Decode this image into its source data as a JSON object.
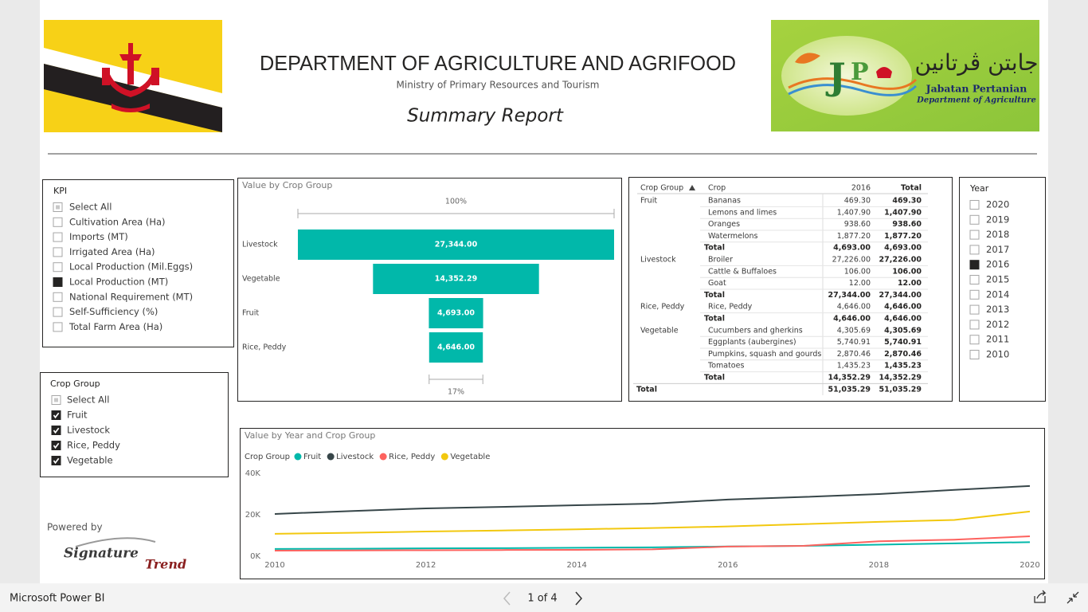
{
  "header": {
    "title": "DEPARTMENT OF AGRICULTURE AND AGRIFOOD",
    "subtitle": "Ministry of Primary Resources and Tourism",
    "report_title": "Summary Report"
  },
  "logo": {
    "arabic": "جابتن ڤرتانين",
    "malay": "Jabatan Pertanian",
    "english": "Department of Agriculture"
  },
  "kpi_slicer": {
    "title": "KPI",
    "options": [
      {
        "label": "Select All",
        "state": "partial"
      },
      {
        "label": "Cultivation Area (Ha)",
        "state": "off"
      },
      {
        "label": "Imports (MT)",
        "state": "off"
      },
      {
        "label": "Irrigated Area (Ha)",
        "state": "off"
      },
      {
        "label": "Local Production (Mil.Eggs)",
        "state": "off"
      },
      {
        "label": "Local Production (MT)",
        "state": "on"
      },
      {
        "label": "National Requirement (MT)",
        "state": "off"
      },
      {
        "label": "Self-Sufficiency (%)",
        "state": "off"
      },
      {
        "label": "Total Farm Area (Ha)",
        "state": "off"
      }
    ]
  },
  "crop_slicer": {
    "title": "Crop Group",
    "options": [
      {
        "label": "Select All",
        "state": "partial"
      },
      {
        "label": "Fruit",
        "state": "on"
      },
      {
        "label": "Livestock",
        "state": "on"
      },
      {
        "label": "Rice, Peddy",
        "state": "on"
      },
      {
        "label": "Vegetable",
        "state": "on"
      }
    ]
  },
  "year_slicer": {
    "title": "Year",
    "options": [
      {
        "label": "2020",
        "state": "off"
      },
      {
        "label": "2019",
        "state": "off"
      },
      {
        "label": "2018",
        "state": "off"
      },
      {
        "label": "2017",
        "state": "off"
      },
      {
        "label": "2016",
        "state": "on"
      },
      {
        "label": "2015",
        "state": "off"
      },
      {
        "label": "2014",
        "state": "off"
      },
      {
        "label": "2013",
        "state": "off"
      },
      {
        "label": "2012",
        "state": "off"
      },
      {
        "label": "2011",
        "state": "off"
      },
      {
        "label": "2010",
        "state": "off"
      }
    ]
  },
  "table": {
    "columns": [
      "Crop Group",
      "Crop",
      "2016",
      "Total"
    ],
    "groups": [
      {
        "name": "Fruit",
        "items": [
          {
            "crop": "Bananas",
            "v2016": "469.30",
            "total": "469.30"
          },
          {
            "crop": "Lemons and limes",
            "v2016": "1,407.90",
            "total": "1,407.90"
          },
          {
            "crop": "Oranges",
            "v2016": "938.60",
            "total": "938.60"
          },
          {
            "crop": "Watermelons",
            "v2016": "1,877.20",
            "total": "1,877.20"
          }
        ],
        "subtotal": {
          "label": "Total",
          "v2016": "4,693.00",
          "total": "4,693.00"
        }
      },
      {
        "name": "Livestock",
        "items": [
          {
            "crop": "Broiler",
            "v2016": "27,226.00",
            "total": "27,226.00"
          },
          {
            "crop": "Cattle & Buffaloes",
            "v2016": "106.00",
            "total": "106.00"
          },
          {
            "crop": "Goat",
            "v2016": "12.00",
            "total": "12.00"
          }
        ],
        "subtotal": {
          "label": "Total",
          "v2016": "27,344.00",
          "total": "27,344.00"
        }
      },
      {
        "name": "Rice, Peddy",
        "items": [
          {
            "crop": "Rice, Peddy",
            "v2016": "4,646.00",
            "total": "4,646.00"
          }
        ],
        "subtotal": {
          "label": "Total",
          "v2016": "4,646.00",
          "total": "4,646.00"
        }
      },
      {
        "name": "Vegetable",
        "items": [
          {
            "crop": "Cucumbers and gherkins",
            "v2016": "4,305.69",
            "total": "4,305.69"
          },
          {
            "crop": "Eggplants (aubergines)",
            "v2016": "5,740.91",
            "total": "5,740.91"
          },
          {
            "crop": "Pumpkins, squash and gourds",
            "v2016": "2,870.46",
            "total": "2,870.46"
          },
          {
            "crop": "Tomatoes",
            "v2016": "1,435.23",
            "total": "1,435.23"
          }
        ],
        "subtotal": {
          "label": "Total",
          "v2016": "14,352.29",
          "total": "14,352.29"
        }
      }
    ],
    "grand_total": {
      "label": "Total",
      "v2016": "51,035.29",
      "total": "51,035.29"
    }
  },
  "chart_data": [
    {
      "type": "funnel",
      "title": "Value by Crop Group",
      "categories": [
        "Livestock",
        "Vegetable",
        "Fruit",
        "Rice, Peddy"
      ],
      "values": [
        27344,
        14352.29,
        4693,
        4646
      ],
      "value_labels": [
        "27,344.00",
        "14,352.29",
        "4,693.00",
        "4,646.00"
      ],
      "color": "#01b8aa",
      "top_label": "100%",
      "bottom_label": "17%"
    },
    {
      "type": "line",
      "title": "Value by Year and Crop Group",
      "legend_title": "Crop Group",
      "x": [
        2010,
        2011,
        2012,
        2013,
        2014,
        2015,
        2016,
        2017,
        2018,
        2019,
        2020
      ],
      "xlim": [
        2010,
        2020
      ],
      "xticks": [
        2010,
        2012,
        2014,
        2016,
        2018,
        2020
      ],
      "ylim": [
        0,
        40000
      ],
      "yticks": [
        {
          "value": 0,
          "label": "0K"
        },
        {
          "value": 20000,
          "label": "20K"
        },
        {
          "value": 40000,
          "label": "40K"
        }
      ],
      "series": [
        {
          "name": "Fruit",
          "color": "#01b8aa",
          "values": [
            3500,
            3600,
            3800,
            3900,
            4100,
            4300,
            4693,
            5000,
            5600,
            6200,
            6800
          ]
        },
        {
          "name": "Livestock",
          "color": "#374649",
          "values": [
            20400,
            21800,
            23100,
            23800,
            24600,
            25400,
            27344,
            28600,
            30000,
            32000,
            33900
          ]
        },
        {
          "name": "Rice, Peddy",
          "color": "#fd625e",
          "values": [
            2700,
            2800,
            2900,
            3000,
            3100,
            3300,
            4646,
            5000,
            7200,
            8000,
            9600
          ]
        },
        {
          "name": "Vegetable",
          "color": "#f2c80f",
          "values": [
            10800,
            11300,
            11900,
            12400,
            13000,
            13600,
            14352.29,
            15500,
            16600,
            17500,
            21600
          ]
        }
      ]
    }
  ],
  "footer": {
    "powered_by": "Powered by",
    "brand": [
      "Signature",
      "Trend"
    ]
  },
  "app_bar": {
    "name": "Microsoft Power BI",
    "page": "1 of 4"
  }
}
